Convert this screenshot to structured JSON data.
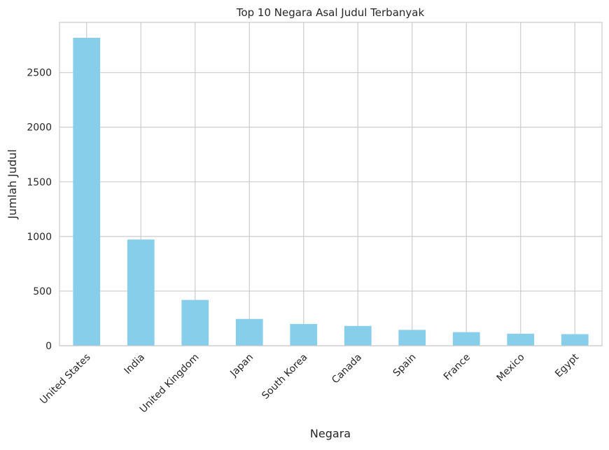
{
  "chart_data": {
    "type": "bar",
    "title": "Top 10 Negara Asal Judul Terbanyak",
    "xlabel": "Negara",
    "ylabel": "Jumlah Judul",
    "categories": [
      "United States",
      "India",
      "United Kingdom",
      "Japan",
      "South Korea",
      "Canada",
      "Spain",
      "France",
      "Mexico",
      "Egypt"
    ],
    "values": [
      2818,
      972,
      419,
      245,
      199,
      181,
      145,
      124,
      110,
      106
    ],
    "ylim": [
      0,
      2959
    ],
    "yticks": [
      0,
      500,
      1000,
      1500,
      2000,
      2500
    ],
    "grid": true,
    "colors": {
      "bar": "#87ceeb",
      "grid": "#cccccc",
      "axes": "#cccccc",
      "background": "#ffffff"
    }
  }
}
